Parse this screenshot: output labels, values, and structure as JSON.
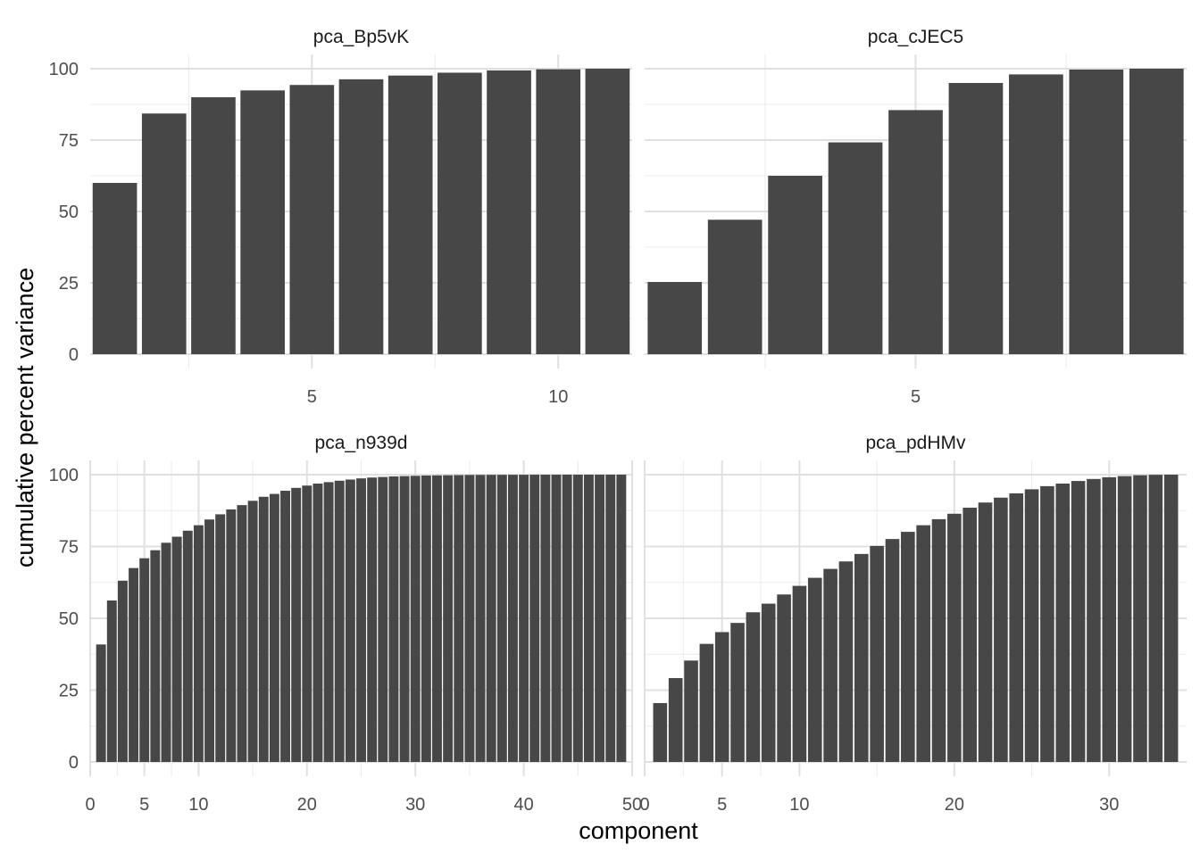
{
  "chart_data": {
    "type": "bar",
    "xlabel": "component",
    "ylabel": "cumulative percent variance",
    "bar_color": "#474747",
    "grid": true,
    "yticks": [
      0,
      25,
      50,
      75,
      100
    ],
    "facets": [
      {
        "title": "pca_Bp5vK",
        "xlim": [
          0.5,
          11.5
        ],
        "xticks": [
          5,
          10
        ],
        "ylim": [
          0,
          100
        ],
        "x": [
          1,
          2,
          3,
          4,
          5,
          6,
          7,
          8,
          9,
          10,
          11
        ],
        "values": [
          60,
          84.3,
          90,
          92.4,
          94.3,
          96.3,
          97.6,
          98.6,
          99.4,
          99.8,
          100
        ]
      },
      {
        "title": "pca_cJEC5",
        "xlim": [
          0.5,
          9.5
        ],
        "xticks": [
          5
        ],
        "ylim": [
          0,
          100
        ],
        "x": [
          1,
          2,
          3,
          4,
          5,
          6,
          7,
          8,
          9
        ],
        "values": [
          25.3,
          47.1,
          62.5,
          74.2,
          85.5,
          95,
          98,
          99.7,
          100
        ]
      },
      {
        "title": "pca_n939d",
        "xlim": [
          0,
          50
        ],
        "xticks": [
          0,
          5,
          10,
          20,
          30,
          40,
          50
        ],
        "ylim": [
          0,
          100
        ],
        "x": [
          1,
          2,
          3,
          4,
          5,
          6,
          7,
          8,
          9,
          10,
          11,
          12,
          13,
          14,
          15,
          16,
          17,
          18,
          19,
          20,
          21,
          22,
          23,
          24,
          25,
          26,
          27,
          28,
          29,
          30,
          31,
          32,
          33,
          34,
          35,
          36,
          37,
          38,
          39,
          40,
          41,
          42,
          43,
          44,
          45,
          46,
          47,
          48,
          49
        ],
        "values": [
          40.9,
          56.2,
          63.1,
          67.5,
          70.9,
          73.7,
          76.3,
          78.4,
          80.5,
          82.4,
          84.4,
          86.2,
          87.9,
          89.4,
          90.9,
          92.3,
          93.3,
          94.4,
          95.4,
          96.2,
          96.9,
          97.4,
          97.9,
          98.3,
          98.7,
          99,
          99.2,
          99.4,
          99.5,
          99.6,
          99.7,
          99.75,
          99.8,
          99.85,
          99.9,
          99.92,
          99.94,
          99.95,
          99.96,
          99.97,
          99.98,
          99.985,
          99.99,
          99.993,
          99.995,
          99.997,
          99.998,
          99.999,
          100
        ]
      },
      {
        "title": "pca_pdHMv",
        "xlim": [
          0,
          35
        ],
        "xticks": [
          0,
          5,
          10,
          20,
          30
        ],
        "ylim": [
          0,
          100
        ],
        "x": [
          1,
          2,
          3,
          4,
          5,
          6,
          7,
          8,
          9,
          10,
          11,
          12,
          13,
          14,
          15,
          16,
          17,
          18,
          19,
          20,
          21,
          22,
          23,
          24,
          25,
          26,
          27,
          28,
          29,
          30,
          31,
          32,
          33,
          34
        ],
        "values": [
          20.5,
          29.2,
          35.3,
          41.1,
          45.2,
          48.4,
          52.1,
          55.1,
          58.3,
          61.3,
          64.1,
          67.2,
          69.8,
          72.4,
          75.2,
          77.6,
          80.1,
          82.4,
          84.5,
          86.4,
          88.5,
          90.3,
          92,
          93.5,
          94.9,
          96,
          96.9,
          97.8,
          98.5,
          99.1,
          99.5,
          99.8,
          99.95,
          100
        ]
      }
    ]
  }
}
